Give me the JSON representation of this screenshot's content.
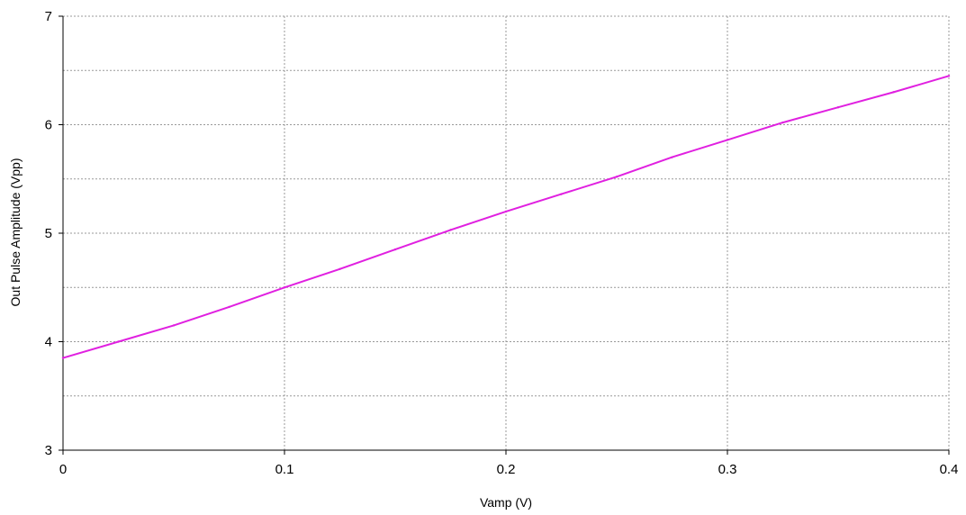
{
  "chart_data": {
    "type": "line",
    "title": "",
    "xlabel": "Vamp (V)",
    "ylabel": "Out Pulse Amplitude (Vpp)",
    "xlim": [
      0,
      0.4
    ],
    "ylim": [
      3,
      7
    ],
    "x_ticks": [
      0,
      0.1,
      0.2,
      0.3,
      0.4
    ],
    "x_tick_labels": [
      "0",
      "0.1",
      "0.2",
      "0.3",
      "0.4"
    ],
    "y_ticks": [
      3,
      4,
      5,
      6,
      7
    ],
    "y_tick_labels": [
      "3",
      "4",
      "5",
      "6",
      "7"
    ],
    "y_minor_grid": [
      3.5,
      4.5,
      5.5,
      6.5
    ],
    "grid": true,
    "legend": "none",
    "series": [
      {
        "color": "#e020e0",
        "x": [
          0,
          0.025,
          0.05,
          0.075,
          0.1,
          0.125,
          0.15,
          0.175,
          0.2,
          0.225,
          0.25,
          0.275,
          0.3,
          0.325,
          0.35,
          0.375,
          0.4
        ],
        "y": [
          3.85,
          4.0,
          4.15,
          4.32,
          4.5,
          4.67,
          4.85,
          5.03,
          5.2,
          5.36,
          5.52,
          5.7,
          5.86,
          6.02,
          6.16,
          6.3,
          6.45
        ]
      }
    ]
  }
}
